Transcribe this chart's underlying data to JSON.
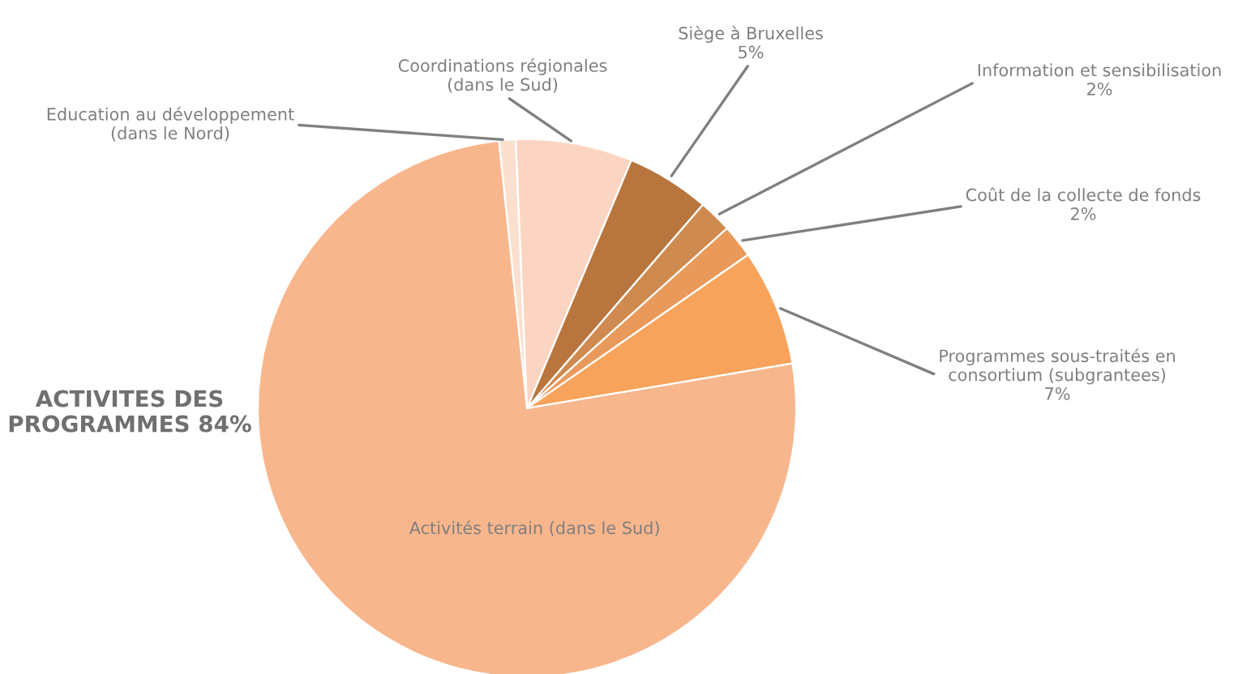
{
  "chart_data": {
    "type": "pie",
    "categories": [
      "Education au développement\n(dans le Nord)",
      "Coordinations régionales\n(dans le Sud)",
      "Siège à Bruxelles",
      "Information et sensibilisation",
      "Coût de la collecte de fonds",
      "Programmes sous-traités en\nconsortium (subgrantees)",
      "Activités terrain (dans le Sud)"
    ],
    "values": [
      1,
      7,
      5,
      2,
      2,
      7,
      76
    ],
    "value_labels": [
      null,
      null,
      "5%",
      "2%",
      "2%",
      "7%",
      null
    ],
    "colors": [
      "#fbe0d0",
      "#fcd5c2",
      "#b8763e",
      "#cf8a4f",
      "#e9995a",
      "#f8a35b",
      "#f8b68d"
    ],
    "annotations": [
      "ACTIVITES DES\nPROGRAMMES 84%"
    ],
    "legend": false
  }
}
